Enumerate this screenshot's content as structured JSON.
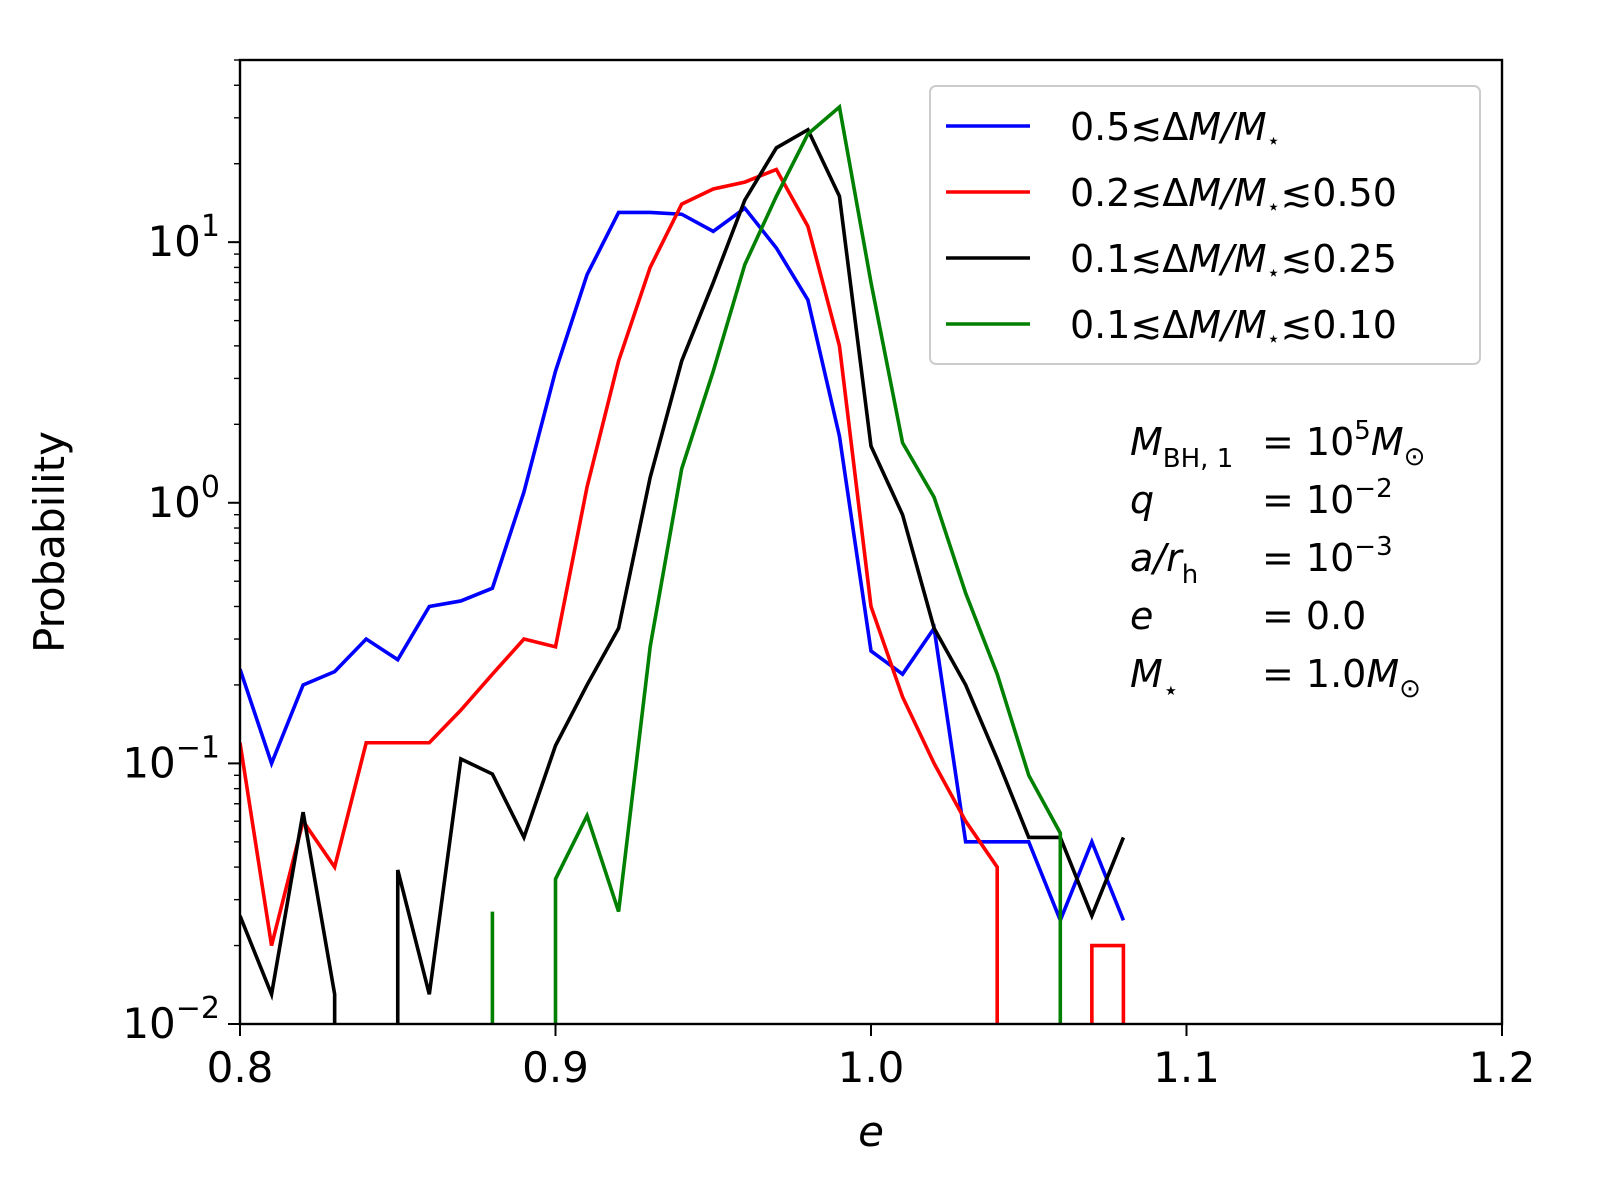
{
  "chart_data": {
    "type": "line",
    "title": "",
    "xlabel": "e",
    "ylabel": "Probability",
    "xscale": "linear",
    "yscale": "log",
    "xlim": [
      0.8,
      1.2
    ],
    "ylim": [
      0.01,
      50
    ],
    "xticks": [
      0.8,
      0.9,
      1.0,
      1.1,
      1.2
    ],
    "xtick_labels": [
      "0.8",
      "0.9",
      "1.0",
      "1.1",
      "1.2"
    ],
    "yticks": [
      0.01,
      0.1,
      1,
      10
    ],
    "ytick_labels": [
      {
        "base": "10",
        "exp": "−2"
      },
      {
        "base": "10",
        "exp": "−1"
      },
      {
        "base": "10",
        "exp": "0"
      },
      {
        "base": "10",
        "exp": "1"
      }
    ],
    "legend_position": "top-right",
    "series": [
      {
        "name": "0.5≲ΔM/M⋆",
        "legend": {
          "pre": "0.5≲Δ",
          "vars": "M/M",
          "sub": "⋆",
          "post": ""
        },
        "color": "#0000ff",
        "points": [
          [
            0.8,
            0.23
          ],
          [
            0.81,
            0.1
          ],
          [
            0.82,
            0.2
          ],
          [
            0.83,
            0.225
          ],
          [
            0.84,
            0.3
          ],
          [
            0.85,
            0.25
          ],
          [
            0.86,
            0.4
          ],
          [
            0.87,
            0.42
          ],
          [
            0.88,
            0.47
          ],
          [
            0.89,
            1.1
          ],
          [
            0.9,
            3.2
          ],
          [
            0.91,
            7.5
          ],
          [
            0.92,
            13.0
          ],
          [
            0.93,
            13.0
          ],
          [
            0.94,
            12.8
          ],
          [
            0.95,
            11.0
          ],
          [
            0.96,
            13.5
          ],
          [
            0.97,
            9.5
          ],
          [
            0.98,
            6.0
          ],
          [
            0.99,
            1.8
          ],
          [
            1.0,
            0.27
          ],
          [
            1.01,
            0.22
          ],
          [
            1.02,
            0.33
          ],
          [
            1.03,
            0.05
          ],
          [
            1.04,
            0.05
          ],
          [
            1.05,
            0.05
          ],
          [
            1.06,
            0.025
          ],
          [
            1.07,
            0.05
          ],
          [
            1.08,
            0.025
          ]
        ]
      },
      {
        "name": "0.2≲ΔM/M⋆≲0.50",
        "legend": {
          "pre": "0.2≲Δ",
          "vars": "M/M",
          "sub": "⋆",
          "post": "≲0.50"
        },
        "color": "#ff0000",
        "points": [
          [
            0.8,
            0.12
          ],
          [
            0.81,
            0.02
          ],
          [
            0.82,
            0.06
          ],
          [
            0.83,
            0.04
          ],
          [
            0.84,
            0.12
          ],
          [
            0.85,
            0.12
          ],
          [
            0.86,
            0.12
          ],
          [
            0.87,
            0.16
          ],
          [
            0.88,
            0.22
          ],
          [
            0.89,
            0.3
          ],
          [
            0.9,
            0.28
          ],
          [
            0.91,
            1.15
          ],
          [
            0.92,
            3.5
          ],
          [
            0.93,
            8.0
          ],
          [
            0.94,
            14.0
          ],
          [
            0.95,
            16.0
          ],
          [
            0.96,
            17.0
          ],
          [
            0.97,
            19.0
          ],
          [
            0.98,
            11.5
          ],
          [
            0.99,
            4.0
          ],
          [
            1.0,
            0.4
          ],
          [
            1.01,
            0.18
          ],
          [
            1.02,
            0.1
          ],
          [
            1.03,
            0.06
          ],
          [
            1.04,
            0.04
          ],
          [
            1.04,
            0.01
          ],
          [
            null,
            null
          ],
          [
            1.07,
            0.01
          ],
          [
            1.07,
            0.02
          ],
          [
            1.08,
            0.02
          ],
          [
            1.08,
            0.01
          ]
        ]
      },
      {
        "name": "0.1≲ΔM/M⋆≲0.25",
        "legend": {
          "pre": "0.1≲Δ",
          "vars": "M/M",
          "sub": "⋆",
          "post": "≲0.25"
        },
        "color": "#000000",
        "points": [
          [
            0.8,
            0.026
          ],
          [
            0.81,
            0.013
          ],
          [
            0.82,
            0.065
          ],
          [
            0.83,
            0.013
          ],
          [
            0.83,
            0.01
          ],
          [
            null,
            null
          ],
          [
            0.85,
            0.01
          ],
          [
            0.85,
            0.039
          ],
          [
            0.86,
            0.013
          ],
          [
            0.87,
            0.104
          ],
          [
            0.88,
            0.091
          ],
          [
            0.89,
            0.052
          ],
          [
            0.9,
            0.117
          ],
          [
            0.91,
            0.2
          ],
          [
            0.92,
            0.33
          ],
          [
            0.93,
            1.25
          ],
          [
            0.94,
            3.5
          ],
          [
            0.95,
            7.0
          ],
          [
            0.96,
            14.5
          ],
          [
            0.97,
            23.0
          ],
          [
            0.98,
            27.0
          ],
          [
            0.99,
            15.0
          ],
          [
            1.0,
            1.65
          ],
          [
            1.01,
            0.9
          ],
          [
            1.02,
            0.33
          ],
          [
            1.03,
            0.2
          ],
          [
            1.04,
            0.104
          ],
          [
            1.05,
            0.052
          ],
          [
            1.06,
            0.052
          ],
          [
            1.07,
            0.026
          ],
          [
            1.08,
            0.052
          ]
        ]
      },
      {
        "name": "0.1≲ΔM/M⋆≲0.10",
        "legend": {
          "pre": "0.1≲Δ",
          "vars": "M/M",
          "sub": "⋆",
          "post": "≲0.10"
        },
        "color": "#008000",
        "points": [
          [
            0.88,
            0.01
          ],
          [
            0.88,
            0.027
          ],
          [
            null,
            null
          ],
          [
            0.9,
            0.01
          ],
          [
            0.9,
            0.036
          ],
          [
            0.91,
            0.063
          ],
          [
            0.92,
            0.027
          ],
          [
            0.93,
            0.28
          ],
          [
            0.94,
            1.35
          ],
          [
            0.95,
            3.2
          ],
          [
            0.96,
            8.2
          ],
          [
            0.97,
            15.0
          ],
          [
            0.98,
            26.0
          ],
          [
            0.99,
            33.0
          ],
          [
            1.0,
            7.0
          ],
          [
            1.01,
            1.7
          ],
          [
            1.02,
            1.05
          ],
          [
            1.03,
            0.45
          ],
          [
            1.04,
            0.22
          ],
          [
            1.05,
            0.09
          ],
          [
            1.06,
            0.054
          ],
          [
            1.06,
            0.01
          ]
        ]
      }
    ],
    "annotation": [
      {
        "pre": "",
        "var": "M",
        "sub": "BH, 1",
        "eq": "= 10",
        "sup": "5",
        "tail": "M",
        "tail_sub": "⊙"
      },
      {
        "pre": "",
        "var": "q",
        "sub": "",
        "eq": "= 10",
        "sup": "−2",
        "tail": "",
        "tail_sub": ""
      },
      {
        "pre": "",
        "var": "a/r",
        "sub": "h",
        "eq": "= 10",
        "sup": "−3",
        "tail": "",
        "tail_sub": ""
      },
      {
        "pre": "",
        "var": "e",
        "sub": "",
        "eq": "= 0.0",
        "sup": "",
        "tail": "",
        "tail_sub": ""
      },
      {
        "pre": "",
        "var": "M",
        "sub": "⋆",
        "eq": "= 1.0",
        "sup": "",
        "tail": "M",
        "tail_sub": "⊙"
      }
    ]
  }
}
